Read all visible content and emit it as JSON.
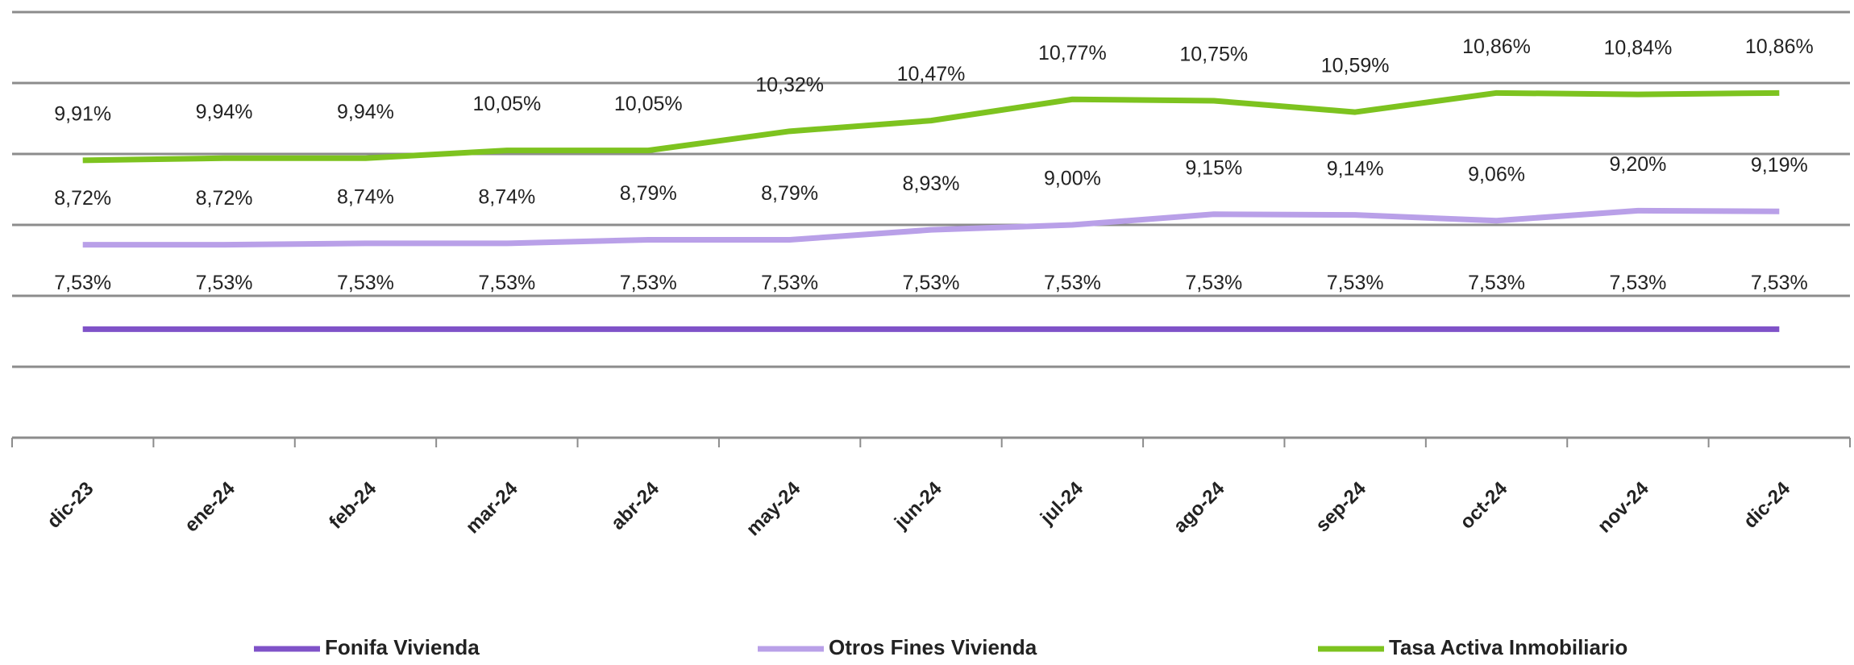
{
  "chart_data": {
    "type": "line",
    "categories": [
      "dic-23",
      "ene-24",
      "feb-24",
      "mar-24",
      "abr-24",
      "may-24",
      "jun-24",
      "jul-24",
      "ago-24",
      "sep-24",
      "oct-24",
      "nov-24",
      "dic-24"
    ],
    "series": [
      {
        "name": "Fonifa Vivienda",
        "color": "#7f52c8",
        "values": [
          7.53,
          7.53,
          7.53,
          7.53,
          7.53,
          7.53,
          7.53,
          7.53,
          7.53,
          7.53,
          7.53,
          7.53,
          7.53
        ],
        "value_labels": [
          "7,53%",
          "7,53%",
          "7,53%",
          "7,53%",
          "7,53%",
          "7,53%",
          "7,53%",
          "7,53%",
          "7,53%",
          "7,53%",
          "7,53%",
          "7,53%",
          "7,53%"
        ]
      },
      {
        "name": "Otros Fines Vivienda",
        "color": "#b9a0e8",
        "values": [
          8.72,
          8.72,
          8.74,
          8.74,
          8.79,
          8.79,
          8.93,
          9.0,
          9.15,
          9.14,
          9.06,
          9.2,
          9.19
        ],
        "value_labels": [
          "8,72%",
          "8,72%",
          "8,74%",
          "8,74%",
          "8,79%",
          "8,79%",
          "8,93%",
          "9,00%",
          "9,15%",
          "9,14%",
          "9,06%",
          "9,20%",
          "9,19%"
        ]
      },
      {
        "name": "Tasa Activa Inmobiliario",
        "color": "#7dc31f",
        "values": [
          9.91,
          9.94,
          9.94,
          10.05,
          10.05,
          10.32,
          10.47,
          10.77,
          10.75,
          10.59,
          10.86,
          10.84,
          10.86
        ],
        "value_labels": [
          "9,91%",
          "9,94%",
          "9,94%",
          "10,05%",
          "10,05%",
          "10,32%",
          "10,47%",
          "10,77%",
          "10,75%",
          "10,59%",
          "10,86%",
          "10,84%",
          "10,86%"
        ]
      }
    ],
    "ylim": [
      6,
      12
    ],
    "yticks": [
      6,
      7,
      8,
      9,
      10,
      11,
      12
    ],
    "grid": true,
    "legend": "bottom"
  }
}
